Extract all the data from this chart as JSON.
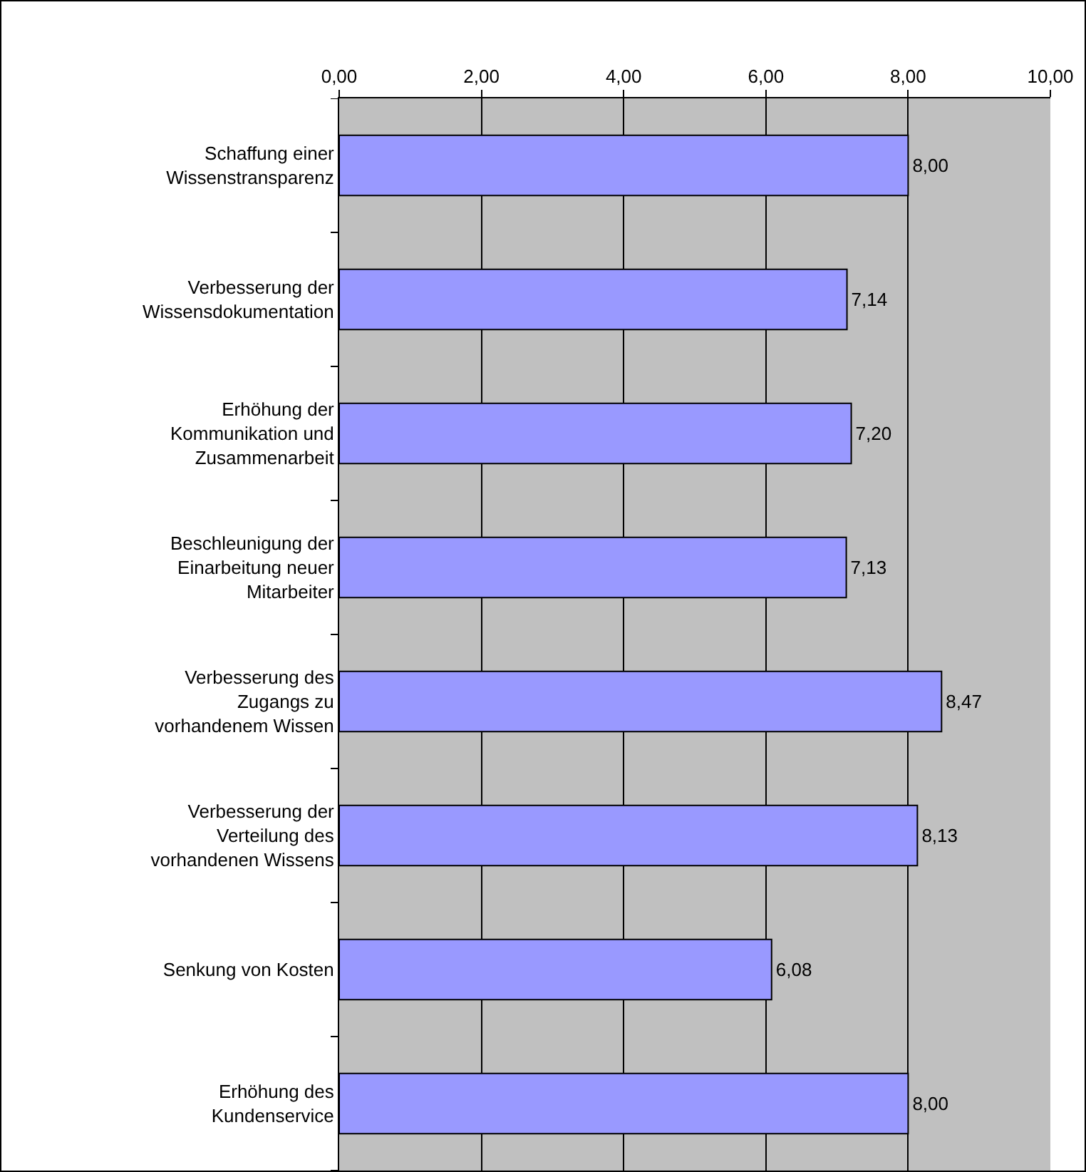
{
  "chart_data": {
    "type": "bar",
    "orientation": "horizontal",
    "categories": [
      "Schaffung einer\nWissenstransparenz",
      "Verbesserung der\nWissensdokumentation",
      "Erhöhung der\nKommunikation und\nZusammenarbeit",
      "Beschleunigung der\nEinarbeitung neuer\nMitarbeiter",
      "Verbesserung des\nZugangs zu\nvorhandenem Wissen",
      "Verbesserung der\nVerteilung des\nvorhandenen Wissens",
      "Senkung von Kosten",
      "Erhöhung des\nKundenservice"
    ],
    "values": [
      8.0,
      7.14,
      7.2,
      7.13,
      8.47,
      8.13,
      6.08,
      8.0
    ],
    "value_labels": [
      "8,00",
      "7,14",
      "7,20",
      "7,13",
      "8,47",
      "8,13",
      "6,08",
      "8,00"
    ],
    "color": "#9999ff",
    "xlim": [
      0,
      10
    ],
    "xticks": [
      {
        "value": 0,
        "label": "0,00"
      },
      {
        "value": 2,
        "label": "2,00"
      },
      {
        "value": 4,
        "label": "4,00"
      },
      {
        "value": 6,
        "label": "6,00"
      },
      {
        "value": 8,
        "label": "8,00"
      },
      {
        "value": 10,
        "label": "10,00"
      }
    ],
    "grid": "x"
  }
}
